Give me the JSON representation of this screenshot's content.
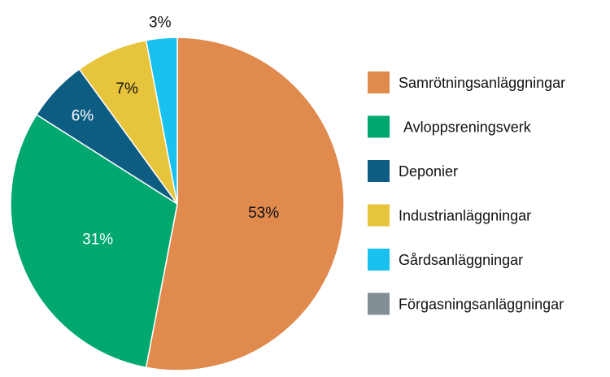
{
  "chart_data": {
    "type": "pie",
    "title": "",
    "slices": [
      {
        "label": "Samrötningsanläggningar",
        "value": 53,
        "display": "53%",
        "color": "#e08a4e",
        "label_color": "#111111"
      },
      {
        "label": "Avloppsreningsverk",
        "value": 31,
        "display": "31%",
        "color": "#00a870",
        "label_color": "#ffffff"
      },
      {
        "label": "Deponier",
        "value": 6,
        "display": "6%",
        "color": "#0d5c82",
        "label_color": "#ffffff"
      },
      {
        "label": "Industrianläggningar",
        "value": 7,
        "display": "7%",
        "color": "#e6c43b",
        "label_color": "#111111"
      },
      {
        "label": "Gårdsanläggningar",
        "value": 3,
        "display": "3%",
        "color": "#19c2ee",
        "label_color": "#111111"
      },
      {
        "label": "Förgasningsanläggningar",
        "value": 0,
        "display": "",
        "color": "#838d94",
        "label_color": "#111111"
      }
    ],
    "legend_position": "right"
  }
}
